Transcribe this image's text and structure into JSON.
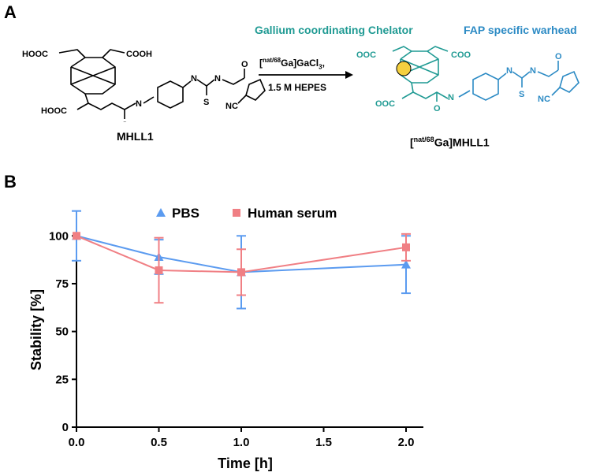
{
  "panel_a": {
    "letter": "A",
    "chelator_heading": "Gallium coordinating Chelator",
    "warhead_heading": "FAP specific warhead",
    "reagent_line1": "[natGa/68Ga]GaCl3,",
    "reagent_line2": "1.5 M HEPES",
    "reactant_name": "MHLL1",
    "product_name": "[nat/68Ga]MHLL1",
    "colors": {
      "chelator": "#1f9a93",
      "warhead": "#2b8ac4"
    },
    "struct_labels": {
      "hooc_top": "HOOC",
      "cooh_top": "COOH",
      "hooc_bottom": "HOOC",
      "n": "N",
      "nh": "H",
      "s": "S",
      "o": "O",
      "nc": "NC",
      "ooc_left": "OOC",
      "coo_right": "COO",
      "ooc_bottom": "OOC",
      "ga": "Ga"
    }
  },
  "panel_b": {
    "letter": "B"
  },
  "chart_data": {
    "type": "line",
    "xlabel": "Time [h]",
    "ylabel": "Stability [%]",
    "xlim": [
      0,
      2.0
    ],
    "ylim": [
      0,
      110
    ],
    "xticks": [
      "0.0",
      "0.5",
      "1.0",
      "1.5",
      "2.0"
    ],
    "yticks": [
      "0",
      "25",
      "50",
      "75",
      "100"
    ],
    "legend_position": "top",
    "series": [
      {
        "name": "PBS",
        "marker": "triangle",
        "color": "#5b9bf0",
        "x": [
          0,
          0.5,
          1.0,
          2.0
        ],
        "y": [
          100,
          89,
          81,
          85
        ],
        "err": [
          13,
          9,
          19,
          15
        ]
      },
      {
        "name": "Human serum",
        "marker": "square",
        "color": "#f07f84",
        "x": [
          0,
          0.5,
          1.0,
          2.0
        ],
        "y": [
          100,
          82,
          81,
          94
        ],
        "err": [
          0,
          17,
          12,
          7
        ]
      }
    ]
  }
}
